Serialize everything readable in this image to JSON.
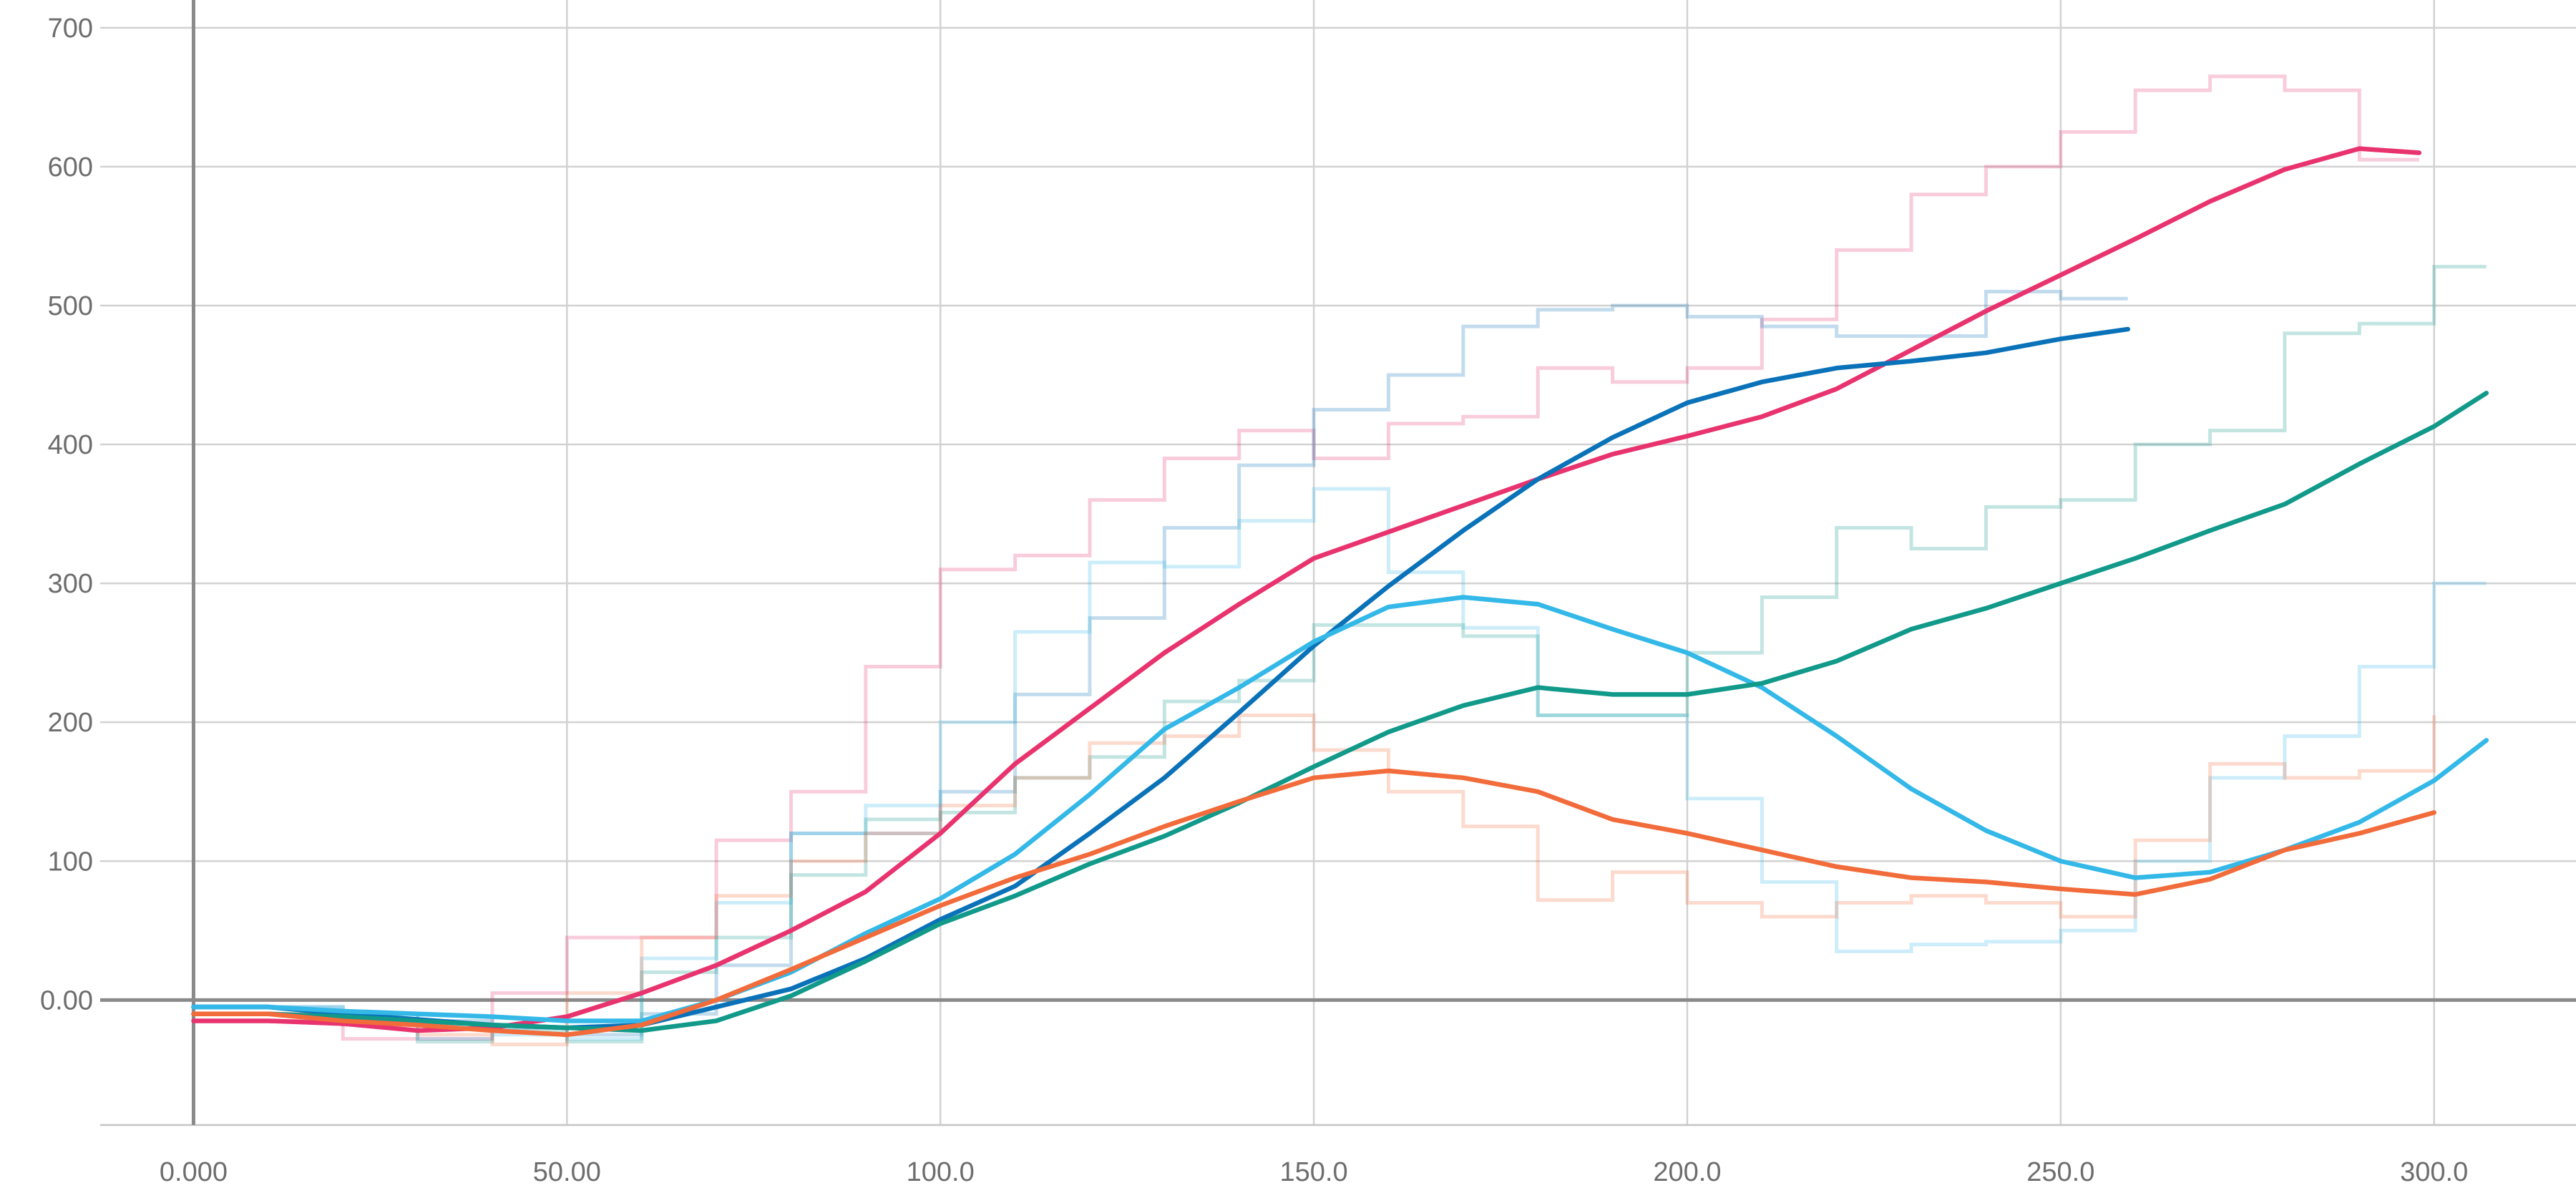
{
  "chart_data": {
    "type": "line",
    "title": "",
    "xlabel": "",
    "ylabel": "",
    "xlim": [
      -12.5,
      319
    ],
    "ylim": [
      -90,
      720
    ],
    "x_ticks": [
      {
        "value": 0,
        "label": "0.000"
      },
      {
        "value": 50,
        "label": "50.00"
      },
      {
        "value": 100,
        "label": "100.0"
      },
      {
        "value": 150,
        "label": "150.0"
      },
      {
        "value": 200,
        "label": "200.0"
      },
      {
        "value": 250,
        "label": "250.0"
      },
      {
        "value": 300,
        "label": "300.0"
      }
    ],
    "y_ticks": [
      {
        "value": 0,
        "label": "0.00"
      },
      {
        "value": 100,
        "label": "100"
      },
      {
        "value": 200,
        "label": "200"
      },
      {
        "value": 300,
        "label": "300"
      },
      {
        "value": 400,
        "label": "400"
      },
      {
        "value": 500,
        "label": "500"
      },
      {
        "value": 600,
        "label": "600"
      },
      {
        "value": 700,
        "label": "700"
      }
    ],
    "grid": true,
    "series": [
      {
        "color": "#e8336e",
        "raw": [
          [
            0,
            -15
          ],
          [
            10,
            -15
          ],
          [
            20,
            -28
          ],
          [
            30,
            -28
          ],
          [
            40,
            5
          ],
          [
            50,
            45
          ],
          [
            60,
            45
          ],
          [
            70,
            115
          ],
          [
            80,
            150
          ],
          [
            90,
            240
          ],
          [
            100,
            310
          ],
          [
            110,
            320
          ],
          [
            120,
            360
          ],
          [
            130,
            390
          ],
          [
            140,
            410
          ],
          [
            150,
            390
          ],
          [
            160,
            415
          ],
          [
            170,
            420
          ],
          [
            180,
            455
          ],
          [
            190,
            445
          ],
          [
            200,
            455
          ],
          [
            210,
            490
          ],
          [
            220,
            540
          ],
          [
            230,
            580
          ],
          [
            240,
            600
          ],
          [
            250,
            625
          ],
          [
            260,
            655
          ],
          [
            270,
            665
          ],
          [
            280,
            655
          ],
          [
            290,
            605
          ],
          [
            298,
            605
          ]
        ],
        "smooth": [
          [
            0,
            -15
          ],
          [
            10,
            -15
          ],
          [
            20,
            -17
          ],
          [
            30,
            -22
          ],
          [
            40,
            -20
          ],
          [
            50,
            -12
          ],
          [
            60,
            5
          ],
          [
            70,
            25
          ],
          [
            80,
            50
          ],
          [
            90,
            78
          ],
          [
            100,
            120
          ],
          [
            110,
            170
          ],
          [
            120,
            210
          ],
          [
            130,
            250
          ],
          [
            140,
            285
          ],
          [
            150,
            318
          ],
          [
            160,
            337
          ],
          [
            170,
            356
          ],
          [
            180,
            375
          ],
          [
            190,
            393
          ],
          [
            200,
            406
          ],
          [
            210,
            420
          ],
          [
            220,
            440
          ],
          [
            230,
            468
          ],
          [
            240,
            496
          ],
          [
            250,
            522
          ],
          [
            260,
            548
          ],
          [
            270,
            575
          ],
          [
            280,
            598
          ],
          [
            290,
            613
          ],
          [
            298,
            610
          ]
        ]
      },
      {
        "color": "#0a72b8",
        "raw": [
          [
            0,
            -5
          ],
          [
            10,
            -5
          ],
          [
            20,
            -15
          ],
          [
            30,
            -15
          ],
          [
            40,
            -20
          ],
          [
            50,
            -25
          ],
          [
            60,
            -10
          ],
          [
            70,
            25
          ],
          [
            80,
            120
          ],
          [
            90,
            120
          ],
          [
            100,
            150
          ],
          [
            110,
            220
          ],
          [
            120,
            275
          ],
          [
            130,
            340
          ],
          [
            140,
            385
          ],
          [
            150,
            425
          ],
          [
            160,
            450
          ],
          [
            170,
            485
          ],
          [
            180,
            497
          ],
          [
            190,
            500
          ],
          [
            200,
            492
          ],
          [
            210,
            485
          ],
          [
            220,
            478
          ],
          [
            230,
            478
          ],
          [
            240,
            510
          ],
          [
            250,
            505
          ],
          [
            259,
            505
          ]
        ],
        "smooth": [
          [
            0,
            -5
          ],
          [
            10,
            -5
          ],
          [
            20,
            -10
          ],
          [
            30,
            -14
          ],
          [
            40,
            -18
          ],
          [
            50,
            -20
          ],
          [
            60,
            -18
          ],
          [
            70,
            -5
          ],
          [
            80,
            8
          ],
          [
            90,
            30
          ],
          [
            100,
            58
          ],
          [
            110,
            82
          ],
          [
            120,
            120
          ],
          [
            130,
            160
          ],
          [
            140,
            207
          ],
          [
            150,
            255
          ],
          [
            160,
            298
          ],
          [
            170,
            338
          ],
          [
            180,
            375
          ],
          [
            190,
            405
          ],
          [
            200,
            430
          ],
          [
            210,
            445
          ],
          [
            220,
            455
          ],
          [
            230,
            460
          ],
          [
            240,
            466
          ],
          [
            250,
            476
          ],
          [
            259,
            483
          ]
        ]
      },
      {
        "color": "#33b8e8",
        "raw": [
          [
            0,
            -5
          ],
          [
            10,
            -5
          ],
          [
            20,
            -10
          ],
          [
            30,
            -28
          ],
          [
            40,
            -25
          ],
          [
            50,
            -28
          ],
          [
            60,
            30
          ],
          [
            70,
            70
          ],
          [
            80,
            120
          ],
          [
            90,
            140
          ],
          [
            100,
            200
          ],
          [
            110,
            265
          ],
          [
            120,
            315
          ],
          [
            130,
            312
          ],
          [
            140,
            345
          ],
          [
            150,
            368
          ],
          [
            160,
            308
          ],
          [
            170,
            268
          ],
          [
            180,
            205
          ],
          [
            190,
            205
          ],
          [
            200,
            145
          ],
          [
            210,
            85
          ],
          [
            220,
            35
          ],
          [
            230,
            40
          ],
          [
            240,
            42
          ],
          [
            250,
            50
          ],
          [
            260,
            100
          ],
          [
            270,
            160
          ],
          [
            280,
            190
          ],
          [
            290,
            240
          ],
          [
            300,
            300
          ],
          [
            307,
            300
          ]
        ],
        "smooth": [
          [
            0,
            -5
          ],
          [
            10,
            -5
          ],
          [
            20,
            -8
          ],
          [
            30,
            -10
          ],
          [
            40,
            -12
          ],
          [
            50,
            -15
          ],
          [
            60,
            -15
          ],
          [
            70,
            0
          ],
          [
            80,
            20
          ],
          [
            90,
            48
          ],
          [
            100,
            73
          ],
          [
            110,
            105
          ],
          [
            120,
            148
          ],
          [
            130,
            195
          ],
          [
            140,
            225
          ],
          [
            150,
            258
          ],
          [
            160,
            283
          ],
          [
            170,
            290
          ],
          [
            180,
            285
          ],
          [
            190,
            267
          ],
          [
            200,
            250
          ],
          [
            210,
            225
          ],
          [
            220,
            190
          ],
          [
            230,
            152
          ],
          [
            240,
            122
          ],
          [
            250,
            100
          ],
          [
            260,
            88
          ],
          [
            270,
            92
          ],
          [
            280,
            108
          ],
          [
            290,
            128
          ],
          [
            300,
            158
          ],
          [
            307,
            187
          ]
        ]
      },
      {
        "color": "#11998a",
        "raw": [
          [
            0,
            -10
          ],
          [
            10,
            -10
          ],
          [
            20,
            -10
          ],
          [
            30,
            -30
          ],
          [
            40,
            -22
          ],
          [
            50,
            -30
          ],
          [
            60,
            20
          ],
          [
            70,
            45
          ],
          [
            80,
            90
          ],
          [
            90,
            130
          ],
          [
            100,
            135
          ],
          [
            110,
            160
          ],
          [
            120,
            175
          ],
          [
            130,
            215
          ],
          [
            140,
            230
          ],
          [
            150,
            270
          ],
          [
            160,
            270
          ],
          [
            170,
            262
          ],
          [
            180,
            205
          ],
          [
            190,
            205
          ],
          [
            200,
            250
          ],
          [
            210,
            290
          ],
          [
            220,
            340
          ],
          [
            230,
            325
          ],
          [
            240,
            355
          ],
          [
            250,
            360
          ],
          [
            260,
            400
          ],
          [
            270,
            410
          ],
          [
            280,
            480
          ],
          [
            290,
            487
          ],
          [
            300,
            528
          ],
          [
            307,
            528
          ]
        ],
        "smooth": [
          [
            0,
            -10
          ],
          [
            10,
            -10
          ],
          [
            20,
            -12
          ],
          [
            30,
            -15
          ],
          [
            40,
            -18
          ],
          [
            50,
            -20
          ],
          [
            60,
            -22
          ],
          [
            70,
            -15
          ],
          [
            80,
            3
          ],
          [
            90,
            28
          ],
          [
            100,
            55
          ],
          [
            110,
            75
          ],
          [
            120,
            98
          ],
          [
            130,
            118
          ],
          [
            140,
            142
          ],
          [
            150,
            168
          ],
          [
            160,
            193
          ],
          [
            170,
            212
          ],
          [
            180,
            225
          ],
          [
            190,
            220
          ],
          [
            200,
            220
          ],
          [
            210,
            228
          ],
          [
            220,
            244
          ],
          [
            230,
            267
          ],
          [
            240,
            282
          ],
          [
            250,
            300
          ],
          [
            260,
            318
          ],
          [
            270,
            338
          ],
          [
            280,
            357
          ],
          [
            290,
            386
          ],
          [
            300,
            413
          ],
          [
            307,
            437
          ]
        ]
      },
      {
        "color": "#f26b3a",
        "raw": [
          [
            0,
            -10
          ],
          [
            10,
            -10
          ],
          [
            20,
            -18
          ],
          [
            30,
            -25
          ],
          [
            40,
            -32
          ],
          [
            50,
            5
          ],
          [
            60,
            45
          ],
          [
            70,
            75
          ],
          [
            80,
            100
          ],
          [
            90,
            120
          ],
          [
            100,
            140
          ],
          [
            110,
            160
          ],
          [
            120,
            185
          ],
          [
            130,
            190
          ],
          [
            140,
            205
          ],
          [
            150,
            180
          ],
          [
            160,
            150
          ],
          [
            170,
            125
          ],
          [
            180,
            72
          ],
          [
            190,
            92
          ],
          [
            200,
            70
          ],
          [
            210,
            60
          ],
          [
            220,
            70
          ],
          [
            230,
            75
          ],
          [
            240,
            70
          ],
          [
            250,
            60
          ],
          [
            260,
            115
          ],
          [
            270,
            170
          ],
          [
            280,
            160
          ],
          [
            290,
            165
          ],
          [
            300,
            205
          ]
        ],
        "smooth": [
          [
            0,
            -10
          ],
          [
            10,
            -10
          ],
          [
            20,
            -15
          ],
          [
            30,
            -18
          ],
          [
            40,
            -22
          ],
          [
            50,
            -25
          ],
          [
            60,
            -18
          ],
          [
            70,
            0
          ],
          [
            80,
            22
          ],
          [
            90,
            45
          ],
          [
            100,
            68
          ],
          [
            110,
            88
          ],
          [
            120,
            105
          ],
          [
            130,
            125
          ],
          [
            140,
            143
          ],
          [
            150,
            160
          ],
          [
            160,
            165
          ],
          [
            170,
            160
          ],
          [
            180,
            150
          ],
          [
            190,
            130
          ],
          [
            200,
            120
          ],
          [
            210,
            108
          ],
          [
            220,
            96
          ],
          [
            230,
            88
          ],
          [
            240,
            85
          ],
          [
            250,
            80
          ],
          [
            260,
            76
          ],
          [
            270,
            87
          ],
          [
            280,
            108
          ],
          [
            290,
            120
          ],
          [
            300,
            135
          ]
        ]
      }
    ]
  }
}
